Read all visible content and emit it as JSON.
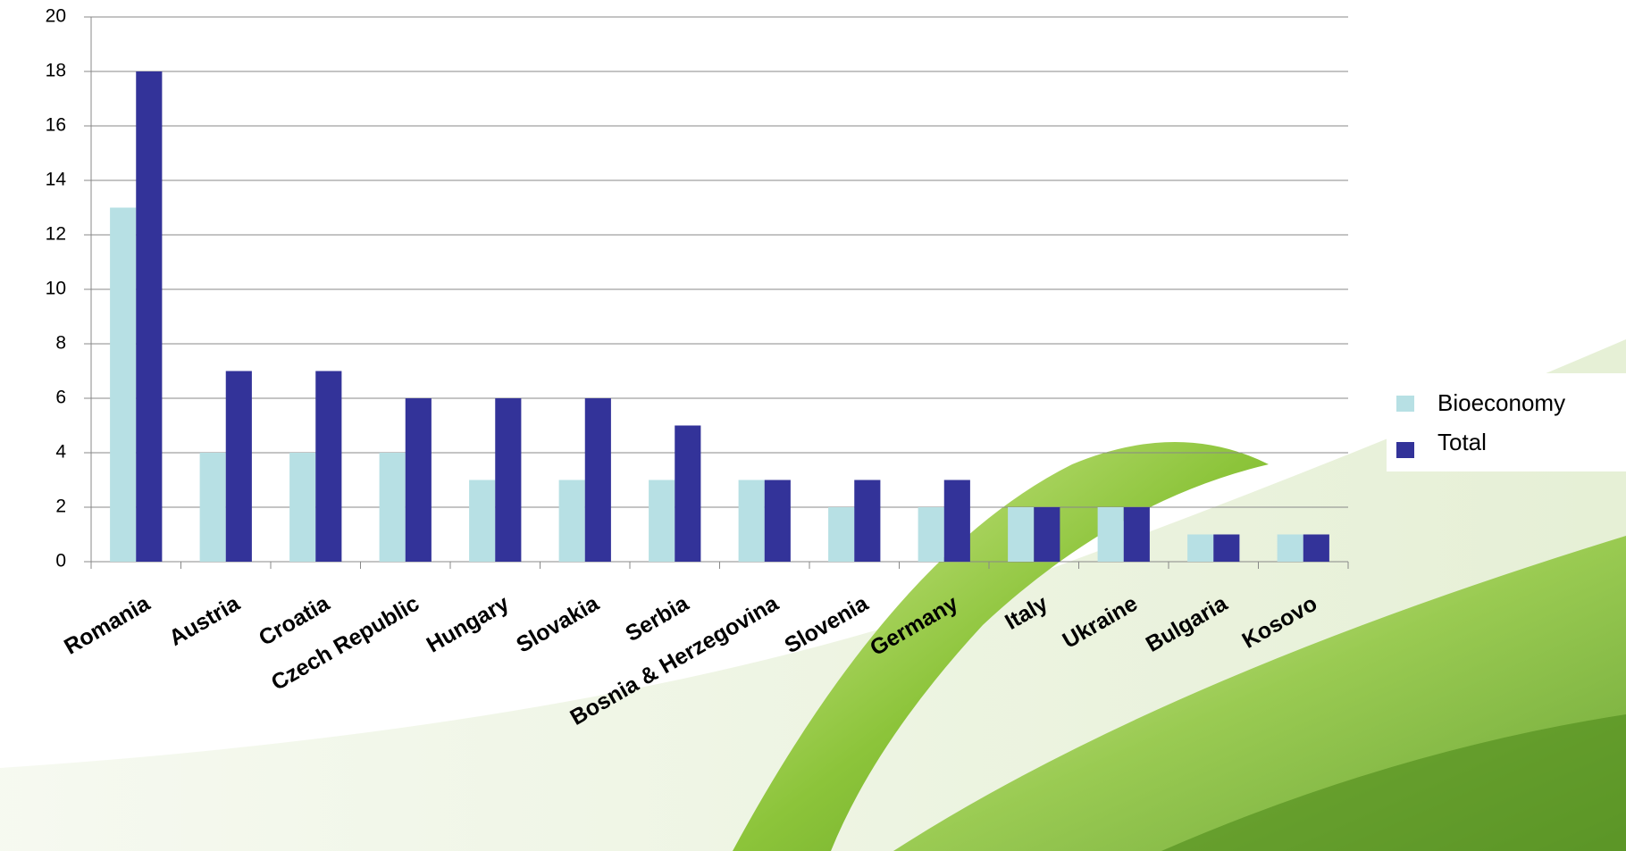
{
  "chart_data": {
    "type": "bar",
    "categories": [
      "Romania",
      "Austria",
      "Croatia",
      "Czech Republic",
      "Hungary",
      "Slovakia",
      "Serbia",
      "Bosnia & Herzegovina",
      "Slovenia",
      "Germany",
      "Italy",
      "Ukraine",
      "Bulgaria",
      "Kosovo"
    ],
    "series": [
      {
        "name": "Bioeconomy",
        "color": "#b7e0e4",
        "values": [
          13,
          4,
          4,
          4,
          3,
          3,
          3,
          3,
          2,
          2,
          2,
          2,
          1,
          1
        ]
      },
      {
        "name": "Total",
        "color": "#333399",
        "values": [
          18,
          7,
          7,
          6,
          6,
          6,
          5,
          3,
          3,
          3,
          2,
          2,
          1,
          1
        ]
      }
    ],
    "ylim": [
      0,
      20
    ],
    "yticks": [
      0,
      2,
      4,
      6,
      8,
      10,
      12,
      14,
      16,
      18,
      20
    ],
    "grid": true,
    "legend": "right"
  }
}
